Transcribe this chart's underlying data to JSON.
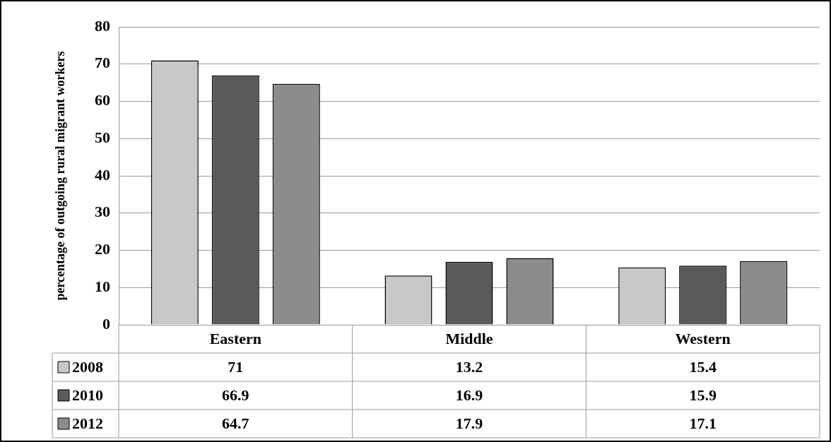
{
  "chart_data": {
    "type": "bar",
    "ylabel": "percentage of outgoing rural migrant workers",
    "categories": [
      "Eastern",
      "Middle",
      "Western"
    ],
    "series": [
      {
        "name": "2008",
        "color": "#c8c8c8",
        "values": [
          71,
          13.2,
          15.4
        ]
      },
      {
        "name": "2010",
        "color": "#5a5a5a",
        "values": [
          66.9,
          16.9,
          15.9
        ]
      },
      {
        "name": "2012",
        "color": "#8c8c8c",
        "values": [
          64.7,
          17.9,
          17.1
        ]
      }
    ],
    "ylim": [
      0,
      80
    ],
    "yticks": [
      0,
      10,
      20,
      30,
      40,
      50,
      60,
      70,
      80
    ],
    "grid": "y",
    "legend": "bottom",
    "data_labels": true
  }
}
